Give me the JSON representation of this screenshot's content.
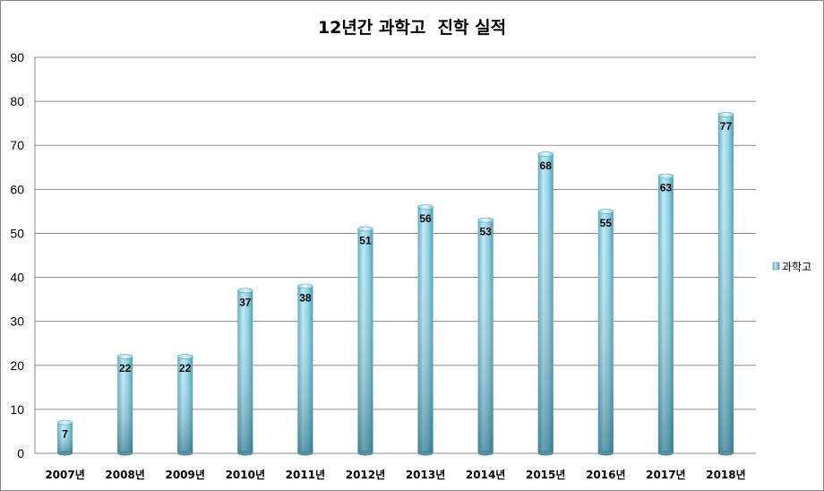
{
  "chart_data": {
    "type": "bar",
    "title": "12년간 과학고  진학 실적",
    "categories": [
      "2007년",
      "2008년",
      "2009년",
      "2010년",
      "2011년",
      "2012년",
      "2013년",
      "2014년",
      "2015년",
      "2016년",
      "2017년",
      "2018년"
    ],
    "series": [
      {
        "name": "과학고",
        "values": [
          7,
          22,
          22,
          37,
          38,
          51,
          56,
          53,
          68,
          55,
          63,
          77
        ]
      }
    ],
    "ylim": [
      0,
      90
    ],
    "yticks": [
      0,
      10,
      20,
      30,
      40,
      50,
      60,
      70,
      80,
      90
    ],
    "grid": true,
    "legend_position": "right",
    "data_labels": true,
    "colors": {
      "bar_light": "#b9e6f2",
      "bar_mid": "#7fcbe0",
      "bar_dark": "#3f8ea5",
      "grid": "#8c8c8c"
    }
  }
}
